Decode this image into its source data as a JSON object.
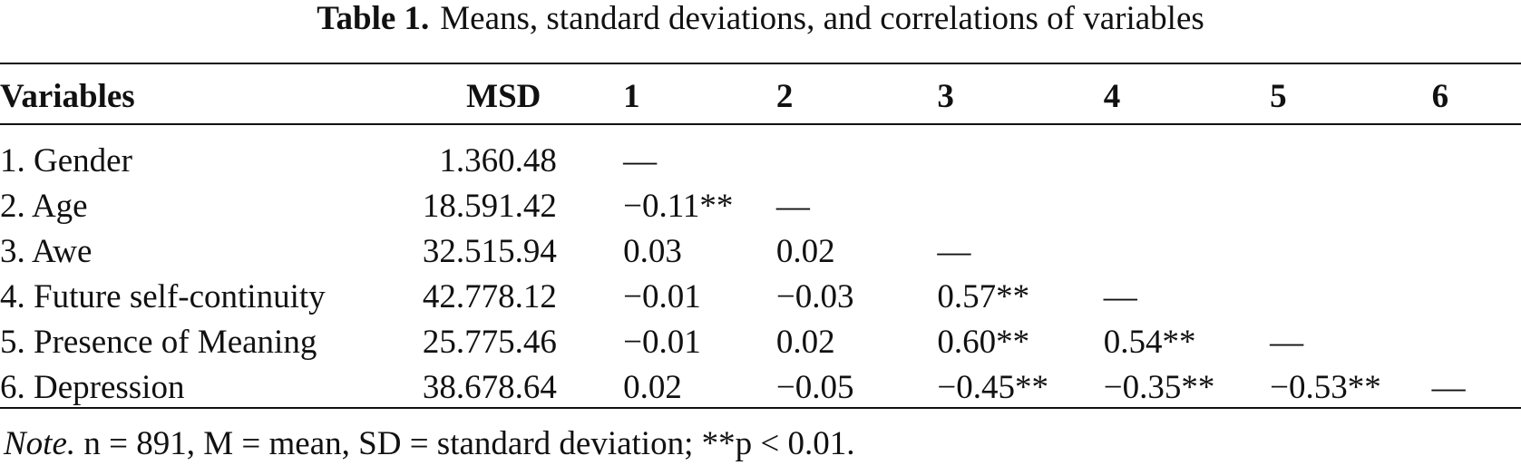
{
  "caption": {
    "label": "Table 1.",
    "text": "Means, standard deviations, and correlations of variables"
  },
  "table": {
    "headers": [
      "Variables",
      "M",
      "SD",
      "1",
      "2",
      "3",
      "4",
      "5",
      "6"
    ],
    "rows": [
      [
        "1. Gender",
        "1.36",
        "0.48",
        "—",
        "",
        "",
        "",
        "",
        ""
      ],
      [
        "2. Age",
        "18.59",
        "1.42",
        "−0.11**",
        "—",
        "",
        "",
        "",
        ""
      ],
      [
        "3. Awe",
        "32.51",
        "5.94",
        "0.03",
        "0.02",
        "—",
        "",
        "",
        ""
      ],
      [
        "4. Future self-continuity",
        "42.77",
        "8.12",
        "−0.01",
        "−0.03",
        "0.57**",
        "—",
        "",
        ""
      ],
      [
        "5. Presence of Meaning",
        "25.77",
        "5.46",
        "−0.01",
        "0.02",
        "0.60**",
        "0.54**",
        "—",
        ""
      ],
      [
        "6. Depression",
        "38.67",
        "8.64",
        "0.02",
        "−0.05",
        "−0.45**",
        "−0.35**",
        "−0.53**",
        "—"
      ]
    ]
  },
  "note": {
    "label": "Note.",
    "text": "n = 891, M = mean, SD = standard deviation; **p < 0.01."
  }
}
